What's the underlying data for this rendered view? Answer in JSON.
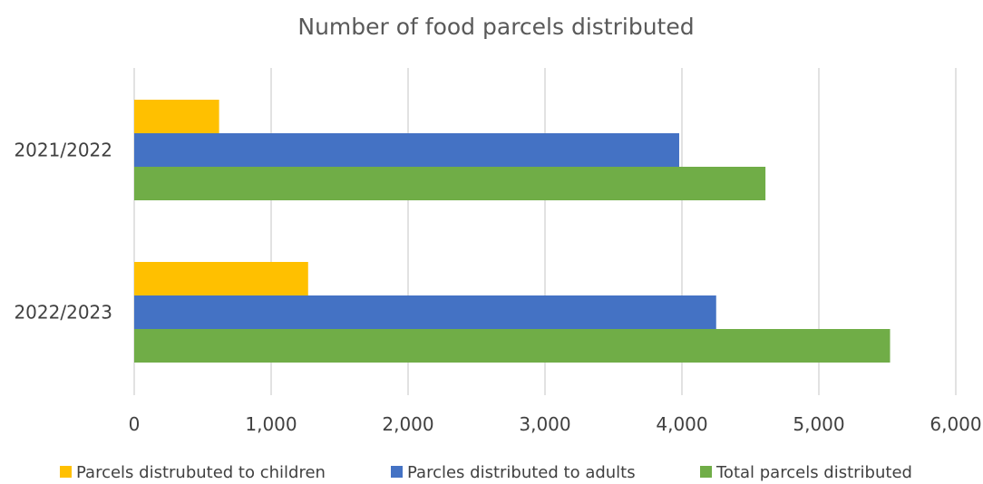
{
  "chart_data": {
    "type": "bar",
    "orientation": "horizontal",
    "title": "Number of food parcels distributed",
    "categories": [
      "2021/2022",
      "2022/2023"
    ],
    "series": [
      {
        "name": "Parcels distrubuted to children",
        "color": "#FFC000",
        "values": [
          620,
          1270
        ]
      },
      {
        "name": "Parcles distributed to adults",
        "color": "#4472C4",
        "values": [
          3980,
          4250
        ]
      },
      {
        "name": "Total parcels distributed",
        "color": "#70AD47",
        "values": [
          4610,
          5520
        ]
      }
    ],
    "xlim": [
      0,
      6000
    ],
    "xticks": [
      0,
      1000,
      2000,
      3000,
      4000,
      5000,
      6000
    ],
    "xtick_labels": [
      "0",
      "1,000",
      "2,000",
      "3,000",
      "4,000",
      "5,000",
      "6,000"
    ],
    "xlabel": "",
    "ylabel": "",
    "grid": "vertical",
    "legend": "bottom"
  }
}
